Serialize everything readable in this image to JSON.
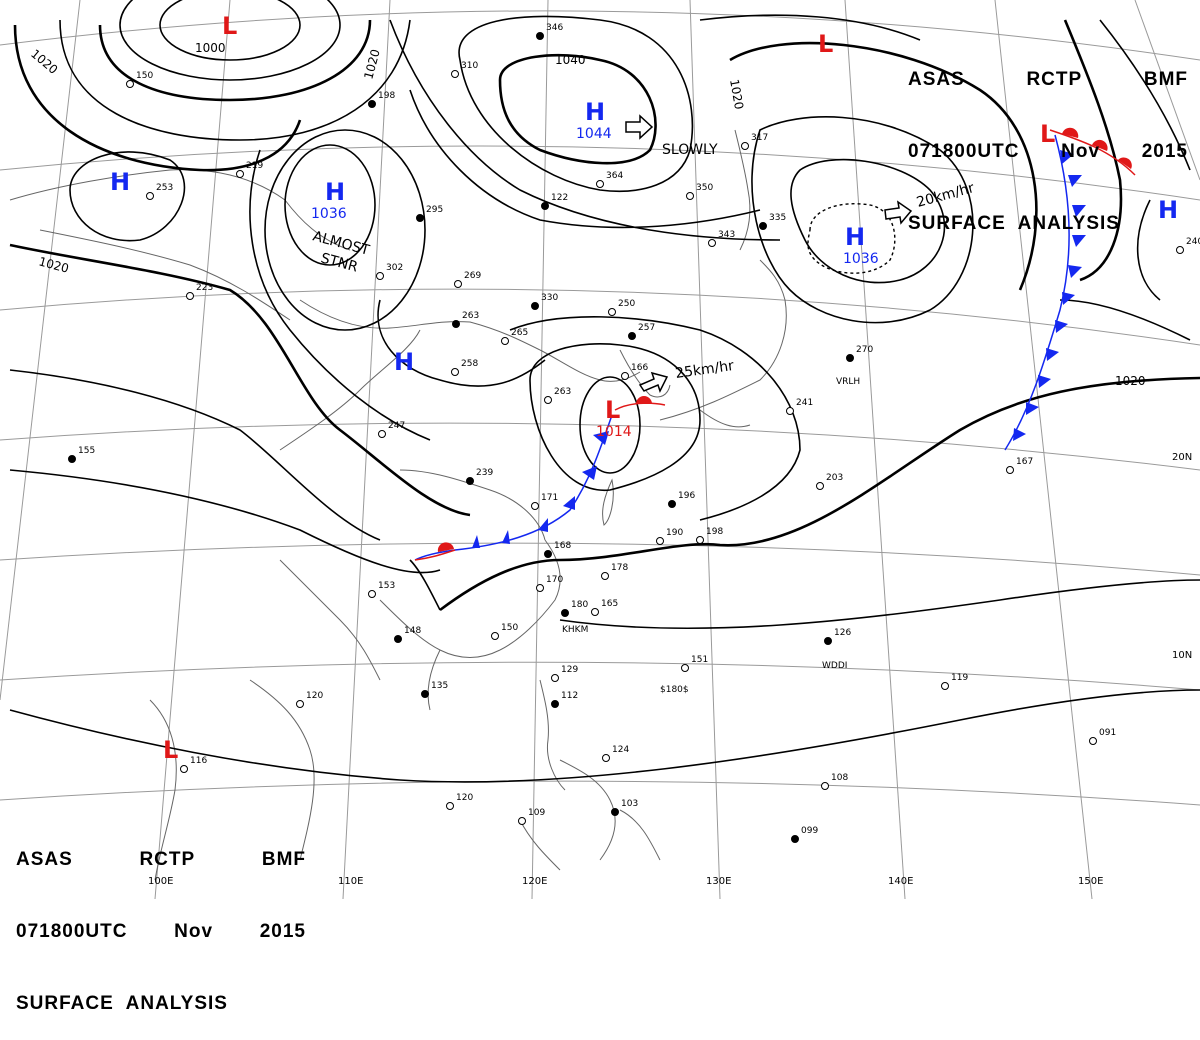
{
  "header": {
    "line1": [
      "ASAS",
      "RCTP",
      "BMF"
    ],
    "line2": [
      "071800UTC",
      "Nov",
      "2015"
    ],
    "line3": "SURFACE  ANALYSIS"
  },
  "isobar_labels": [
    "1000",
    "1020",
    "1020",
    "1020",
    "1020",
    "1040",
    "1020"
  ],
  "pressure_centers": [
    {
      "type": "L",
      "value": "1000"
    },
    {
      "type": "L",
      "value": ""
    },
    {
      "type": "H",
      "value": "1044"
    },
    {
      "type": "H",
      "value": "1036"
    },
    {
      "type": "H",
      "value": "1036"
    },
    {
      "type": "H",
      "value": ""
    },
    {
      "type": "H",
      "value": ""
    },
    {
      "type": "H",
      "value": ""
    },
    {
      "type": "L",
      "value": "1014"
    },
    {
      "type": "L",
      "value": ""
    },
    {
      "type": "L",
      "value": ""
    }
  ],
  "movements": [
    "SLOWLY",
    "20km/hr",
    "25km/hr"
  ],
  "annotations": [
    "ALMOST",
    "STNR"
  ],
  "longitudes": [
    "100E",
    "110E",
    "120E",
    "130E",
    "140E",
    "150E"
  ],
  "latitudes": [
    "20N",
    "10N"
  ],
  "station_ids": [
    "VRLH",
    "WDDI",
    "$180$",
    "KHKM"
  ],
  "station_values": [
    "346",
    "310",
    "150",
    "198",
    "219",
    "253",
    "295",
    "302",
    "269",
    "263",
    "258",
    "247",
    "239",
    "171",
    "223",
    "330",
    "265",
    "250",
    "257",
    "166",
    "263",
    "122",
    "364",
    "350",
    "335",
    "343",
    "317",
    "270",
    "241",
    "203",
    "196",
    "190",
    "198",
    "168",
    "178",
    "170",
    "180",
    "165",
    "153",
    "148",
    "150",
    "151",
    "135",
    "120",
    "129",
    "112",
    "124",
    "109",
    "103",
    "120",
    "108",
    "099",
    "091",
    "119",
    "126",
    "167",
    "116",
    "155",
    "240"
  ],
  "colors": {
    "cold_front": "#1428f0",
    "warm_front": "#e01818",
    "high": "#1428f0",
    "low": "#e01818",
    "grid": "#888888",
    "coast": "#666666"
  }
}
